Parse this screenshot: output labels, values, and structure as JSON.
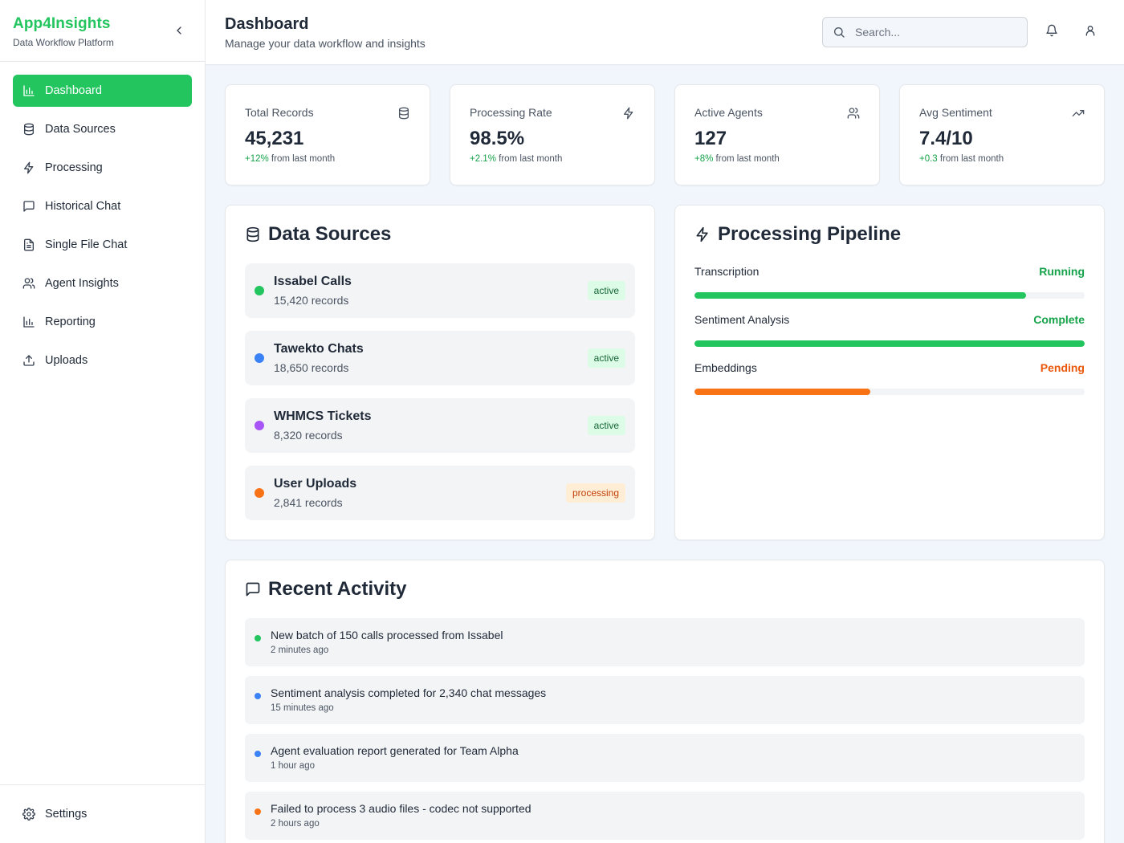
{
  "brand": {
    "name": "App4Insights",
    "subtitle": "Data Workflow Platform"
  },
  "sidebar": {
    "items": [
      {
        "label": "Dashboard",
        "icon": "bar-chart-icon",
        "active": true
      },
      {
        "label": "Data Sources",
        "icon": "database-icon"
      },
      {
        "label": "Processing",
        "icon": "zap-icon"
      },
      {
        "label": "Historical Chat",
        "icon": "message-square-icon"
      },
      {
        "label": "Single File Chat",
        "icon": "file-text-icon"
      },
      {
        "label": "Agent Insights",
        "icon": "users-icon"
      },
      {
        "label": "Reporting",
        "icon": "bar-chart-icon"
      },
      {
        "label": "Uploads",
        "icon": "upload-icon"
      }
    ],
    "footer": {
      "label": "Settings",
      "icon": "gear-icon"
    }
  },
  "header": {
    "title": "Dashboard",
    "subtitle": "Manage your data workflow and insights",
    "search_placeholder": "Search..."
  },
  "stats": [
    {
      "title": "Total Records",
      "value": "45,231",
      "change": "+12%",
      "change_suffix": " from last month",
      "icon": "database-icon"
    },
    {
      "title": "Processing Rate",
      "value": "98.5%",
      "change": "+2.1%",
      "change_suffix": " from last month",
      "icon": "zap-icon"
    },
    {
      "title": "Active Agents",
      "value": "127",
      "change": "+8%",
      "change_suffix": " from last month",
      "icon": "users-icon"
    },
    {
      "title": "Avg Sentiment",
      "value": "7.4/10",
      "change": "+0.3",
      "change_suffix": " from last month",
      "icon": "trending-up-icon"
    }
  ],
  "data_sources": {
    "title": "Data Sources",
    "items": [
      {
        "name": "Issabel Calls",
        "records": "15,420 records",
        "status": "active",
        "color": "#22c55e"
      },
      {
        "name": "Tawekto Chats",
        "records": "18,650 records",
        "status": "active",
        "color": "#3b82f6"
      },
      {
        "name": "WHMCS Tickets",
        "records": "8,320 records",
        "status": "active",
        "color": "#a855f7"
      },
      {
        "name": "User Uploads",
        "records": "2,841 records",
        "status": "processing",
        "color": "#f97316"
      }
    ]
  },
  "pipeline": {
    "title": "Processing Pipeline",
    "stages": [
      {
        "name": "Transcription",
        "status": "Running",
        "progress": 85,
        "color": "#22c55e",
        "status_color": "#16a34a"
      },
      {
        "name": "Sentiment Analysis",
        "status": "Complete",
        "progress": 100,
        "color": "#22c55e",
        "status_color": "#16a34a"
      },
      {
        "name": "Embeddings",
        "status": "Pending",
        "progress": 45,
        "color": "#f97316",
        "status_color": "#ea580c"
      }
    ]
  },
  "activity": {
    "title": "Recent Activity",
    "items": [
      {
        "text": "New batch of 150 calls processed from Issabel",
        "time": "2 minutes ago",
        "color": "#22c55e"
      },
      {
        "text": "Sentiment analysis completed for 2,340 chat messages",
        "time": "15 minutes ago",
        "color": "#3b82f6"
      },
      {
        "text": "Agent evaluation report generated for Team Alpha",
        "time": "1 hour ago",
        "color": "#3b82f6"
      },
      {
        "text": "Failed to process 3 audio files - codec not supported",
        "time": "2 hours ago",
        "color": "#f97316"
      }
    ]
  }
}
